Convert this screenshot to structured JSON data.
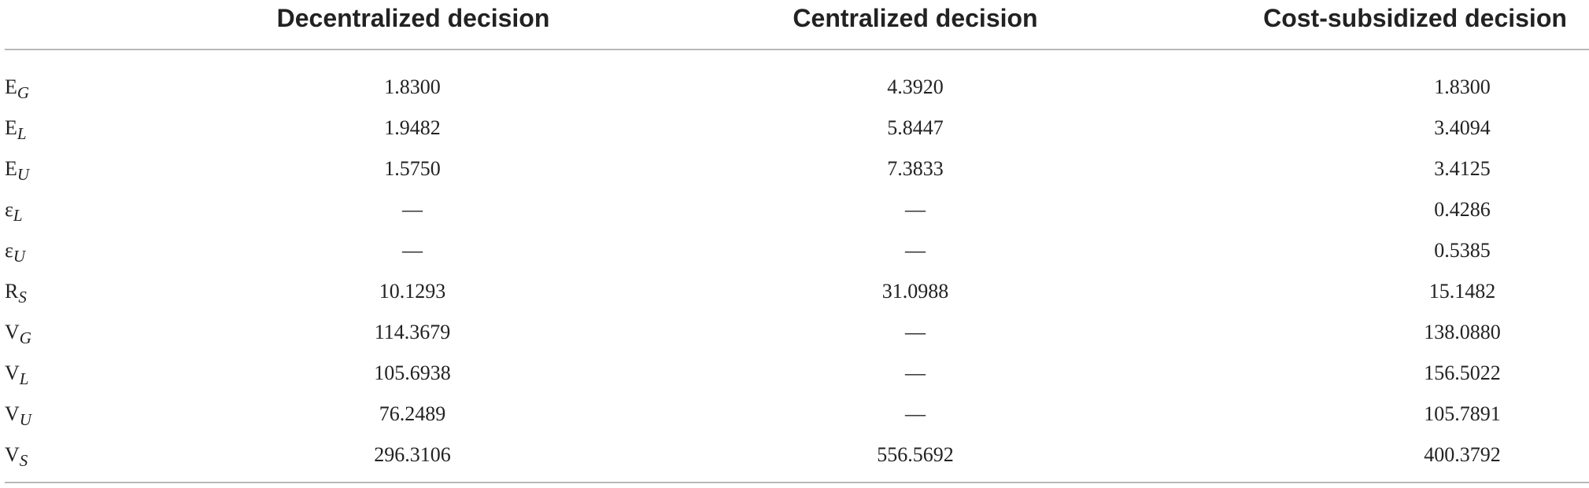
{
  "table": {
    "columns": [
      "Decentralized decision",
      "Centralized decision",
      "Cost-subsidized decision"
    ],
    "rows": [
      {
        "symbol": "E",
        "subscript": "G",
        "values": [
          "1.8300",
          "4.3920",
          "1.8300"
        ]
      },
      {
        "symbol": "E",
        "subscript": "L",
        "values": [
          "1.9482",
          "5.8447",
          "3.4094"
        ]
      },
      {
        "symbol": "E",
        "subscript": "U",
        "values": [
          "1.5750",
          "7.3833",
          "3.4125"
        ]
      },
      {
        "symbol": "ε",
        "subscript": "L",
        "values": [
          "—",
          "—",
          "0.4286"
        ]
      },
      {
        "symbol": "ε",
        "subscript": "U",
        "values": [
          "—",
          "—",
          "0.5385"
        ]
      },
      {
        "symbol": "R",
        "subscript": "S",
        "values": [
          "10.1293",
          "31.0988",
          "15.1482"
        ]
      },
      {
        "symbol": "V",
        "subscript": "G",
        "values": [
          "114.3679",
          "—",
          "138.0880"
        ]
      },
      {
        "symbol": "V",
        "subscript": "L",
        "values": [
          "105.6938",
          "—",
          "156.5022"
        ]
      },
      {
        "symbol": "V",
        "subscript": "U",
        "values": [
          "76.2489",
          "—",
          "105.7891"
        ]
      },
      {
        "symbol": "V",
        "subscript": "S",
        "values": [
          "296.3106",
          "556.5692",
          "400.3792"
        ]
      }
    ]
  }
}
